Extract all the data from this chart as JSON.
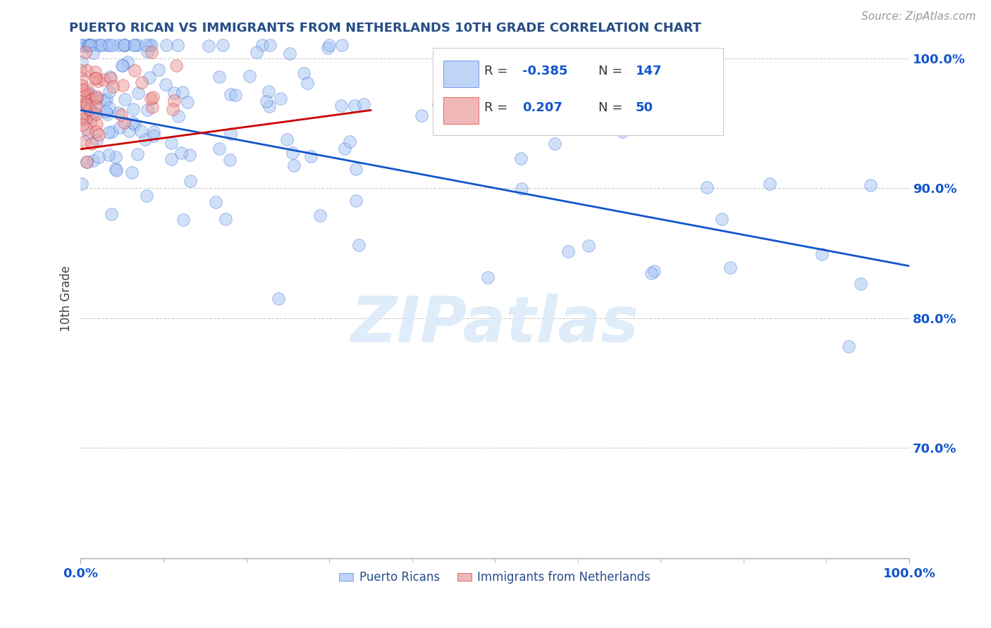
{
  "title": "PUERTO RICAN VS IMMIGRANTS FROM NETHERLANDS 10TH GRADE CORRELATION CHART",
  "source": "Source: ZipAtlas.com",
  "ylabel": "10th Grade",
  "xlim": [
    0.0,
    1.0
  ],
  "ylim": [
    0.615,
    1.015
  ],
  "yticks": [
    0.7,
    0.8,
    0.9,
    1.0
  ],
  "ytick_labels": [
    "70.0%",
    "80.0%",
    "90.0%",
    "100.0%"
  ],
  "blue_color": "#a4c2f4",
  "pink_color": "#ea9999",
  "blue_line_color": "#1155cc",
  "pink_line_color": "#cc0000",
  "blue_r": -0.385,
  "blue_n": 147,
  "pink_r": 0.207,
  "pink_n": 50,
  "blue_line_x0": 0.0,
  "blue_line_y0": 0.96,
  "blue_line_x1": 1.0,
  "blue_line_y1": 0.84,
  "pink_line_x0": 0.0,
  "pink_line_y0": 0.93,
  "pink_line_x1": 0.35,
  "pink_line_y1": 0.96,
  "watermark_text": "ZIPatlas",
  "background_color": "#ffffff",
  "grid_color": "#cccccc",
  "title_color": "#274e87",
  "source_color": "#999999",
  "legend_label_blue": "Puerto Ricans",
  "legend_label_pink": "Immigrants from Netherlands",
  "legend_r1_val": "-0.385",
  "legend_n1_val": "147",
  "legend_r2_val": "0.207",
  "legend_n2_val": "50"
}
